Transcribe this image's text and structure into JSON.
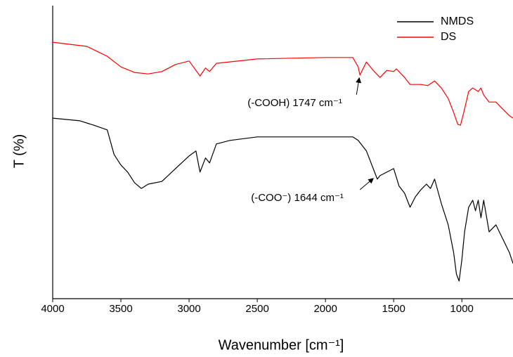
{
  "chart_data": {
    "type": "line",
    "x_label": "Wavenumber [cm⁻¹]",
    "y_label": "T (%)",
    "xlim": [
      4000,
      625
    ],
    "ylim": [
      0,
      100
    ],
    "xticks": [
      4000,
      3500,
      3000,
      2500,
      2000,
      1500,
      1000
    ],
    "legend": "top-right",
    "series": [
      {
        "name": "NMDS",
        "color": "#000000",
        "x": [
          4000,
          3800,
          3700,
          3600,
          3550,
          3500,
          3450,
          3400,
          3350,
          3300,
          3200,
          3100,
          3000,
          2950,
          2920,
          2880,
          2850,
          2800,
          2700,
          2500,
          2000,
          1800,
          1760,
          1700,
          1650,
          1620,
          1600,
          1550,
          1500,
          1460,
          1420,
          1380,
          1340,
          1300,
          1260,
          1230,
          1200,
          1150,
          1100,
          1060,
          1040,
          1020,
          1000,
          980,
          950,
          920,
          900,
          880,
          860,
          840,
          800,
          750,
          700,
          650,
          625
        ],
        "values": [
          61.6,
          60.7,
          59.2,
          57.6,
          49.2,
          45.6,
          43.2,
          39.6,
          37.6,
          39.1,
          40.0,
          44.4,
          48.7,
          50.4,
          43.2,
          48.0,
          46.3,
          52.8,
          54.0,
          55.2,
          55.2,
          55.2,
          54.0,
          50.4,
          44.4,
          40.8,
          42.0,
          43.2,
          44.4,
          38.4,
          36.0,
          31.2,
          34.8,
          37.2,
          39.1,
          37.6,
          40.8,
          32.4,
          25.2,
          15.6,
          8.4,
          6.0,
          13.2,
          22.8,
          31.2,
          33.6,
          30.0,
          33.6,
          27.6,
          33.6,
          22.8,
          25.2,
          20.4,
          15.6,
          12.0
        ]
      },
      {
        "name": "DS",
        "color": "#ff0000",
        "x": [
          4000,
          3750,
          3600,
          3500,
          3400,
          3300,
          3200,
          3100,
          3000,
          2920,
          2880,
          2850,
          2800,
          2500,
          2000,
          1800,
          1760,
          1747,
          1700,
          1650,
          1600,
          1550,
          1500,
          1480,
          1420,
          1380,
          1300,
          1250,
          1200,
          1150,
          1100,
          1060,
          1030,
          1010,
          980,
          950,
          920,
          880,
          860,
          840,
          800,
          750,
          700,
          650,
          625
        ],
        "values": [
          87.5,
          86.1,
          82.7,
          79.1,
          77.2,
          76.7,
          77.5,
          79.9,
          81.1,
          76.0,
          78.7,
          77.5,
          80.3,
          81.8,
          82.3,
          82.3,
          79.1,
          76.3,
          80.8,
          77.9,
          75.5,
          77.9,
          77.5,
          78.4,
          75.5,
          73.1,
          73.1,
          72.7,
          74.3,
          71.9,
          68.3,
          63.5,
          59.5,
          59.2,
          64.7,
          70.7,
          71.9,
          70.7,
          71.9,
          69.5,
          67.1,
          67.1,
          64.7,
          62.4,
          61.6
        ]
      }
    ],
    "annotations": [
      {
        "text": "(-COOH)  1747 cm⁻¹",
        "x": 1747,
        "y": 76.3
      },
      {
        "text": "(-COO⁻)  1644 cm⁻¹",
        "x": 1644,
        "y": 42.0
      }
    ]
  }
}
